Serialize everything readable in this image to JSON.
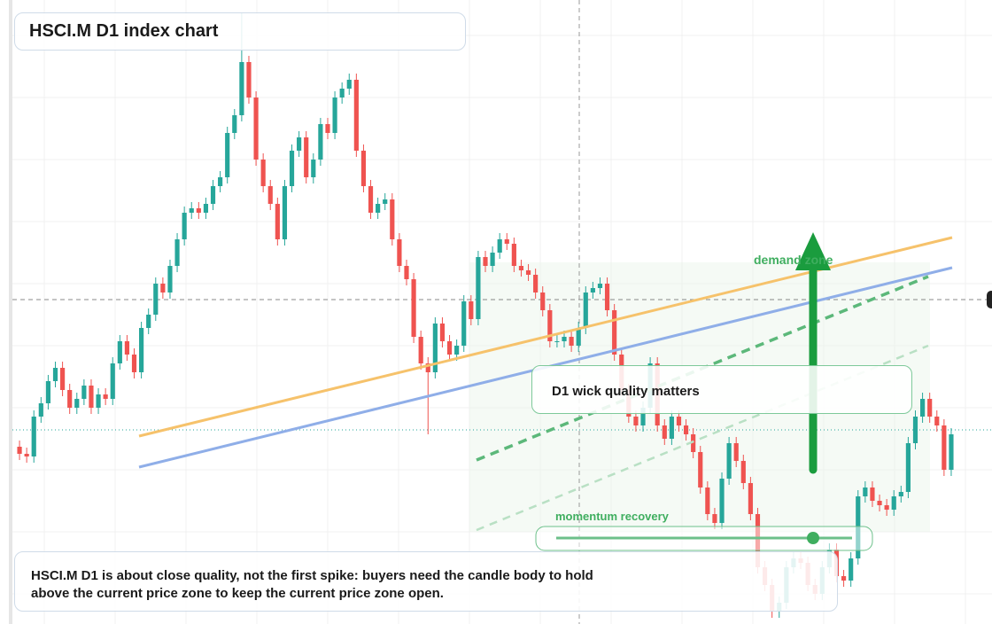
{
  "chart_data": {
    "type": "candlestick",
    "title": "HSCI.M D1 index chart",
    "note_lines": [
      "HSCI.M D1 is about close quality, not the first spike: buyers need the candle body to hold",
      "above the current price zone to keep the current price zone open."
    ],
    "annotations": {
      "callout": "D1 wick quality matters",
      "zone": "demand zone",
      "momentum": "momentum recovery"
    },
    "up_color": "#26a69a",
    "down_color": "#ef5350",
    "ylim": [
      0,
      704
    ],
    "open": [
      200,
      192,
      189,
      234,
      249,
      274,
      289,
      264,
      244,
      254,
      269,
      244,
      259,
      254,
      294,
      319,
      304,
      284,
      334,
      349,
      384,
      374,
      404,
      434,
      464,
      469,
      464,
      474,
      494,
      504,
      554,
      574,
      634,
      594,
      524,
      494,
      474,
      434,
      494,
      534,
      549,
      504,
      524,
      564,
      554,
      594,
      604,
      614,
      534,
      494,
      464,
      474,
      479,
      434,
      404,
      389,
      324,
      294,
      284,
      339,
      319,
      304,
      314,
      364,
      344,
      414,
      404,
      419,
      434,
      429,
      404,
      399,
      394,
      374,
      354,
      319,
      319,
      324,
      314,
      334,
      374,
      379,
      384,
      354,
      304,
      264,
      234,
      224,
      244,
      294,
      224,
      209,
      234,
      224,
      214,
      194,
      154,
      124,
      114,
      164,
      204,
      184,
      159,
      124,
      64,
      44,
      14,
      24,
      64,
      74,
      69,
      44,
      34,
      64,
      84,
      54,
      49,
      74,
      144,
      154,
      139,
      134,
      129,
      144,
      149,
      204,
      234,
      254,
      234,
      224,
      174
    ],
    "high": [
      207,
      199,
      241,
      256,
      281,
      296,
      296,
      271,
      261,
      276,
      276,
      266,
      266,
      301,
      326,
      326,
      311,
      341,
      356,
      391,
      391,
      411,
      441,
      471,
      476,
      476,
      481,
      501,
      511,
      561,
      581,
      690,
      641,
      601,
      531,
      501,
      481,
      501,
      541,
      556,
      556,
      531,
      571,
      571,
      601,
      611,
      621,
      621,
      541,
      501,
      481,
      486,
      486,
      441,
      411,
      396,
      331,
      301,
      346,
      346,
      326,
      321,
      371,
      371,
      421,
      421,
      426,
      441,
      441,
      436,
      411,
      406,
      401,
      381,
      361,
      326,
      331,
      331,
      341,
      381,
      386,
      391,
      391,
      361,
      311,
      271,
      241,
      251,
      301,
      301,
      231,
      241,
      241,
      231,
      221,
      201,
      161,
      131,
      171,
      211,
      211,
      191,
      166,
      131,
      71,
      51,
      31,
      71,
      81,
      81,
      76,
      51,
      71,
      91,
      91,
      61,
      81,
      151,
      161,
      161,
      146,
      141,
      151,
      156,
      211,
      241,
      261,
      261,
      241,
      231,
      221
    ],
    "low": [
      185,
      182,
      182,
      227,
      242,
      267,
      257,
      237,
      237,
      247,
      237,
      237,
      247,
      247,
      287,
      297,
      277,
      277,
      327,
      342,
      367,
      367,
      397,
      427,
      457,
      457,
      457,
      467,
      487,
      497,
      547,
      567,
      587,
      517,
      487,
      467,
      427,
      427,
      487,
      527,
      497,
      497,
      517,
      547,
      547,
      587,
      597,
      527,
      487,
      457,
      457,
      467,
      427,
      397,
      382,
      317,
      287,
      214,
      277,
      312,
      297,
      297,
      307,
      337,
      337,
      397,
      397,
      412,
      422,
      397,
      392,
      387,
      367,
      347,
      312,
      312,
      312,
      307,
      307,
      327,
      367,
      372,
      347,
      297,
      257,
      227,
      217,
      217,
      237,
      217,
      202,
      202,
      217,
      207,
      187,
      147,
      117,
      107,
      107,
      157,
      177,
      152,
      117,
      57,
      37,
      7,
      7,
      17,
      57,
      62,
      37,
      27,
      27,
      57,
      47,
      42,
      42,
      67,
      137,
      132,
      127,
      122,
      122,
      137,
      142,
      197,
      227,
      227,
      217,
      167,
      167
    ],
    "close": [
      192,
      189,
      234,
      249,
      274,
      289,
      264,
      244,
      254,
      269,
      244,
      259,
      254,
      294,
      319,
      304,
      284,
      334,
      349,
      384,
      374,
      404,
      434,
      464,
      469,
      464,
      474,
      494,
      504,
      554,
      574,
      634,
      594,
      524,
      494,
      474,
      434,
      494,
      534,
      549,
      504,
      524,
      564,
      554,
      594,
      604,
      614,
      534,
      494,
      464,
      474,
      479,
      434,
      404,
      389,
      324,
      294,
      284,
      339,
      319,
      304,
      314,
      364,
      344,
      414,
      404,
      419,
      434,
      429,
      404,
      399,
      394,
      374,
      354,
      319,
      319,
      324,
      314,
      334,
      374,
      379,
      384,
      354,
      304,
      264,
      234,
      224,
      244,
      294,
      224,
      209,
      234,
      224,
      214,
      194,
      154,
      124,
      114,
      164,
      204,
      184,
      159,
      124,
      64,
      44,
      14,
      24,
      64,
      74,
      69,
      44,
      34,
      64,
      84,
      54,
      49,
      74,
      144,
      154,
      139,
      134,
      129,
      144,
      149,
      204,
      234,
      254,
      234,
      224,
      174,
      214
    ]
  }
}
